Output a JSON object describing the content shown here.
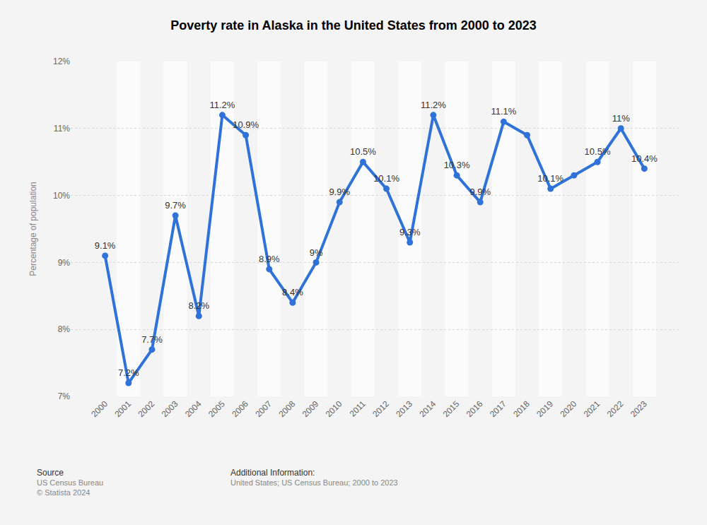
{
  "chart_data": {
    "type": "line",
    "title": "Poverty rate in Alaska in the United States from 2000 to 2023",
    "y_label": "Percentage of population",
    "categories": [
      "2000",
      "2001",
      "2002",
      "2003",
      "2004",
      "2005",
      "2006",
      "2007",
      "2008",
      "2009",
      "2010",
      "2011",
      "2012",
      "2013",
      "2014",
      "2015",
      "2016",
      "2017",
      "2018",
      "2019",
      "2020",
      "2021",
      "2022",
      "2023"
    ],
    "values": [
      9.1,
      7.2,
      7.7,
      9.7,
      8.2,
      11.2,
      10.9,
      8.9,
      8.4,
      9,
      9.9,
      10.5,
      10.1,
      9.3,
      11.2,
      10.3,
      9.9,
      11.1,
      10.9,
      10.1,
      10.3,
      10.5,
      11,
      10.4
    ],
    "value_labels": [
      "9.1%",
      "7.2%",
      "7.7%",
      "9.7%",
      "8.2%",
      "11.2%",
      "10.9%",
      "8.9%",
      "8.4%",
      "9%",
      "9.9%",
      "10.5%",
      "10.1%",
      "9.3%",
      "11.2%",
      "10.3%",
      "9.9%",
      "11.1%",
      null,
      "10.1%",
      null,
      "10.5%",
      "11%",
      "10.4%"
    ],
    "data_labels": true,
    "color": "#2f72d8",
    "marker": "circle",
    "line_style": "solid",
    "ylim": [
      7,
      12
    ],
    "yticks": [
      {
        "value": 7,
        "label": "7%"
      },
      {
        "value": 8,
        "label": "8%"
      },
      {
        "value": 9,
        "label": "9%"
      },
      {
        "value": 10,
        "label": "10%"
      },
      {
        "value": 11,
        "label": "11%"
      },
      {
        "value": 12,
        "label": "12%"
      }
    ],
    "grid": true
  },
  "footer": {
    "source_title": "Source",
    "source_lines": [
      "US Census Bureau",
      "© Statista 2024"
    ],
    "info_title": "Additional Information:",
    "info_lines": [
      "United States; US Census Bureau; 2000 to 2023"
    ]
  }
}
